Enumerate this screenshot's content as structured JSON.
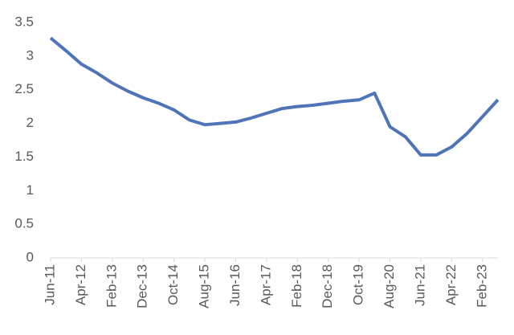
{
  "chart_data": {
    "type": "line",
    "categories": [
      "Jun-11",
      null,
      "Apr-12",
      null,
      "Feb-13",
      null,
      "Dec-13",
      null,
      "Oct-14",
      null,
      "Aug-15",
      null,
      "Jun-16",
      null,
      "Apr-17",
      null,
      "Feb-18",
      null,
      "Dec-18",
      null,
      "Oct-19",
      null,
      "Aug-20",
      null,
      "Jun-21",
      null,
      "Apr-22",
      null,
      "Feb-23",
      null
    ],
    "series": [
      {
        "color": "#4f74b8",
        "values": [
          3.27,
          3.08,
          2.88,
          2.75,
          2.6,
          2.48,
          2.38,
          2.3,
          2.2,
          2.05,
          1.98,
          2.0,
          2.02,
          2.08,
          2.15,
          2.22,
          2.25,
          2.27,
          2.3,
          2.33,
          2.35,
          2.45,
          1.95,
          1.8,
          1.53,
          1.53,
          1.65,
          1.85,
          2.1,
          2.35
        ]
      }
    ],
    "ylim": [
      0,
      3.5
    ],
    "yticks": [
      0,
      0.5,
      1,
      1.5,
      2,
      2.5,
      3,
      3.5
    ],
    "grid": false
  }
}
